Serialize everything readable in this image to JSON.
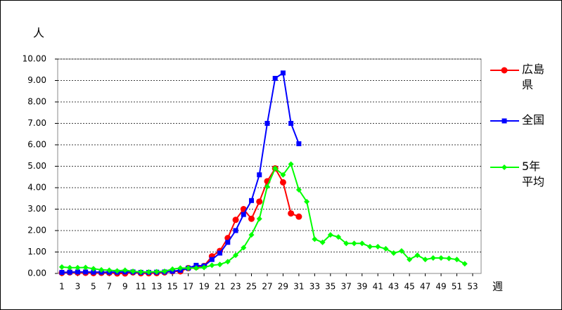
{
  "chart_data": {
    "type": "line",
    "y_label": "人",
    "x_label": "週",
    "xlim": [
      0.47,
      54.07
    ],
    "ylim": [
      0,
      10
    ],
    "xticks": [
      1,
      3,
      5,
      7,
      9,
      11,
      13,
      15,
      17,
      19,
      21,
      23,
      25,
      27,
      29,
      31,
      33,
      35,
      37,
      39,
      41,
      43,
      45,
      47,
      49,
      51,
      53
    ],
    "yticks": [
      {
        "value": 0,
        "label": "0.00"
      },
      {
        "value": 1,
        "label": "1.00"
      },
      {
        "value": 2,
        "label": "2.00"
      },
      {
        "value": 3,
        "label": "3.00"
      },
      {
        "value": 4,
        "label": "4.00"
      },
      {
        "value": 5,
        "label": "5.00"
      },
      {
        "value": 6,
        "label": "6.00"
      },
      {
        "value": 7,
        "label": "7.00"
      },
      {
        "value": 8,
        "label": "8.00"
      },
      {
        "value": 9,
        "label": "9.00"
      },
      {
        "value": 10,
        "label": "10.00"
      }
    ],
    "grid": true,
    "series": [
      {
        "name": "広島県",
        "color": "#ff0000",
        "marker": "circle",
        "x": [
          1,
          2,
          3,
          4,
          5,
          6,
          7,
          8,
          9,
          10,
          11,
          12,
          13,
          14,
          15,
          16,
          17,
          18,
          19,
          20,
          21,
          22,
          23,
          24,
          25,
          26,
          27,
          28,
          29,
          30,
          31
        ],
        "values": [
          0.03,
          0.05,
          0.04,
          0.03,
          0.02,
          0.03,
          0.03,
          0.0,
          0.0,
          0.05,
          0.01,
          0.01,
          0.02,
          0.05,
          0.1,
          0.1,
          0.25,
          0.3,
          0.35,
          0.8,
          1.05,
          1.65,
          2.5,
          3.0,
          2.55,
          3.35,
          4.3,
          4.9,
          4.25,
          2.8,
          2.65
        ]
      },
      {
        "name": "全国",
        "color": "#0000ff",
        "marker": "square",
        "x": [
          1,
          2,
          3,
          4,
          5,
          6,
          7,
          8,
          9,
          10,
          11,
          12,
          13,
          14,
          15,
          16,
          17,
          18,
          19,
          20,
          21,
          22,
          23,
          24,
          25,
          26,
          27,
          28,
          29,
          30,
          31
        ],
        "values": [
          0.05,
          0.06,
          0.07,
          0.07,
          0.06,
          0.06,
          0.06,
          0.06,
          0.07,
          0.07,
          0.05,
          0.05,
          0.06,
          0.07,
          0.1,
          0.15,
          0.25,
          0.38,
          0.35,
          0.65,
          0.95,
          1.45,
          2.0,
          2.75,
          3.4,
          4.6,
          7.0,
          9.1,
          9.35,
          7.0,
          6.05
        ]
      },
      {
        "name": "5年平均",
        "color": "#00ff00",
        "marker": "diamond",
        "x": [
          1,
          2,
          3,
          4,
          5,
          6,
          7,
          8,
          9,
          10,
          11,
          12,
          13,
          14,
          15,
          16,
          17,
          18,
          19,
          20,
          21,
          22,
          23,
          24,
          25,
          26,
          27,
          28,
          29,
          30,
          31,
          32,
          33,
          34,
          35,
          36,
          37,
          38,
          39,
          40,
          41,
          42,
          43,
          44,
          45,
          46,
          47,
          48,
          49,
          50,
          51,
          52
        ],
        "values": [
          0.3,
          0.27,
          0.27,
          0.28,
          0.22,
          0.17,
          0.15,
          0.12,
          0.15,
          0.1,
          0.07,
          0.07,
          0.08,
          0.1,
          0.2,
          0.25,
          0.25,
          0.25,
          0.28,
          0.38,
          0.42,
          0.55,
          0.85,
          1.2,
          1.8,
          2.55,
          4.05,
          4.9,
          4.6,
          5.1,
          3.9,
          3.35,
          1.6,
          1.45,
          1.8,
          1.7,
          1.4,
          1.4,
          1.4,
          1.25,
          1.25,
          1.15,
          0.95,
          1.05,
          0.65,
          0.85,
          0.65,
          0.72,
          0.72,
          0.7,
          0.65,
          0.45
        ]
      }
    ]
  }
}
